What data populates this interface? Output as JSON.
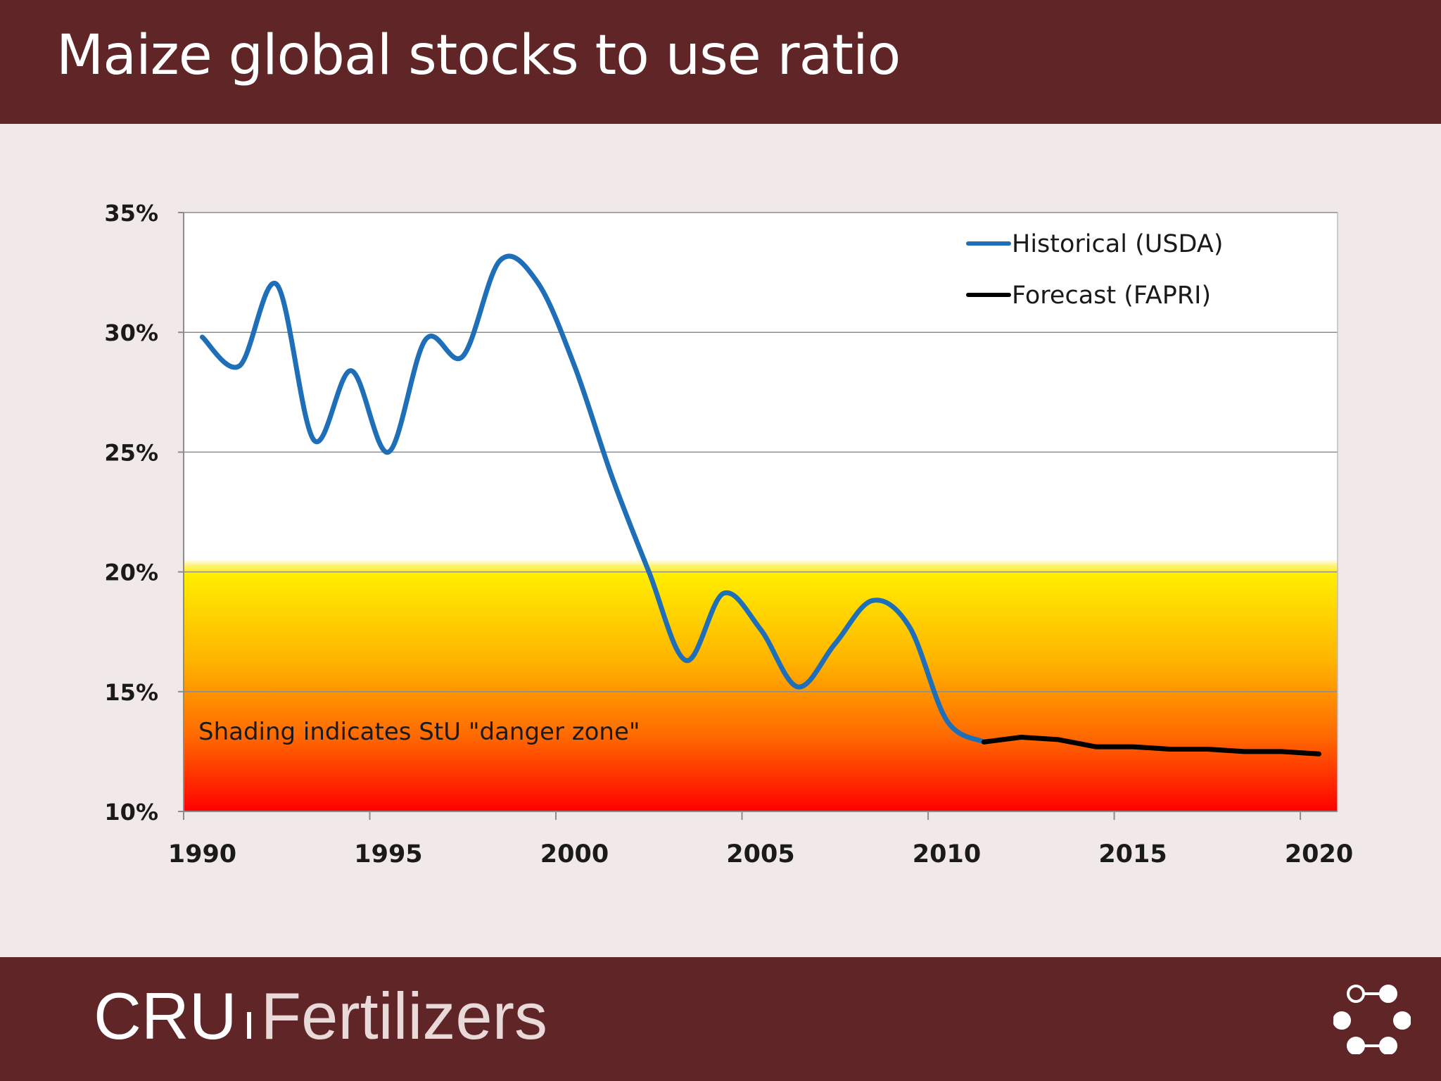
{
  "header": {
    "title": "Maize global stocks to use ratio"
  },
  "footer": {
    "brand_main": "CRU",
    "brand_sub": "Fertilizers"
  },
  "colors": {
    "header_bg": "#5f2527",
    "historical": "#1f6fb8",
    "forecast": "#000000",
    "danger_top": "#ffee00",
    "danger_bottom": "#ff0000"
  },
  "chart_data": {
    "type": "line",
    "title": "",
    "xlabel": "",
    "ylabel": "",
    "xlim": [
      1990,
      2021
    ],
    "ylim": [
      0.1,
      0.35
    ],
    "y_ticks": [
      0.1,
      0.15,
      0.2,
      0.25,
      0.3,
      0.35
    ],
    "y_tick_labels": [
      "10%",
      "15%",
      "20%",
      "25%",
      "30%",
      "35%"
    ],
    "x_ticks": [
      1990,
      1995,
      2000,
      2005,
      2010,
      2015,
      2020
    ],
    "x_tick_labels": [
      "1990",
      "1995",
      "2000",
      "2005",
      "2010",
      "2015",
      "2020"
    ],
    "grid": true,
    "legend_position": "top-right",
    "danger_zone": {
      "from": 0.1,
      "to": 0.2,
      "label": "Shading indicates StU \"danger zone\""
    },
    "series": [
      {
        "name": "Historical (USDA)",
        "color": "#1f6fb8",
        "x": [
          1990.5,
          1991.5,
          1992.5,
          1993.5,
          1994.5,
          1995.5,
          1996.5,
          1997.5,
          1998.5,
          1999.5,
          2000.5,
          2001.5,
          2002.5,
          2003.5,
          2004.5,
          2005.5,
          2006.5,
          2007.5,
          2008.5,
          2009.5,
          2010.5,
          2011.5
        ],
        "y": [
          0.298,
          0.286,
          0.32,
          0.255,
          0.284,
          0.25,
          0.297,
          0.29,
          0.33,
          0.321,
          0.286,
          0.24,
          0.2,
          0.163,
          0.191,
          0.176,
          0.152,
          0.17,
          0.188,
          0.177,
          0.138,
          0.129
        ]
      },
      {
        "name": "Forecast (FAPRI)",
        "color": "#000000",
        "x": [
          2011.5,
          2012.5,
          2013.5,
          2014.5,
          2015.5,
          2016.5,
          2017.5,
          2018.5,
          2019.5,
          2020.5
        ],
        "y": [
          0.129,
          0.131,
          0.13,
          0.127,
          0.127,
          0.126,
          0.126,
          0.125,
          0.125,
          0.124
        ]
      }
    ]
  }
}
